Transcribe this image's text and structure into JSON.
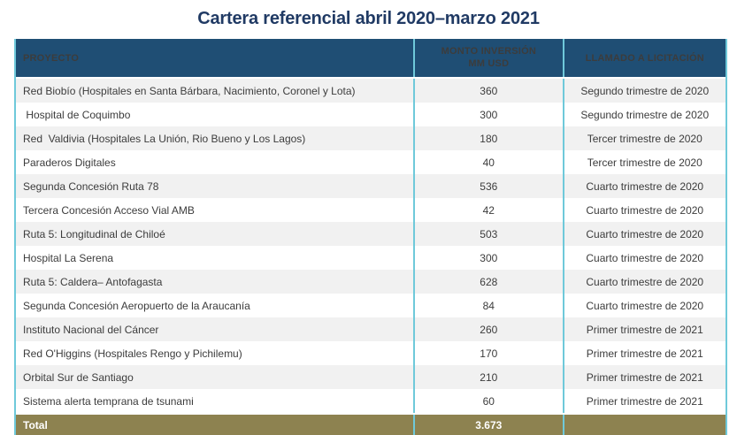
{
  "title": "Cartera referencial abril 2020–marzo 2021",
  "table": {
    "header": {
      "proyecto": "PROYECTO",
      "monto_line1": "MONTO INVERSIÓN",
      "monto_line2": "MM USD",
      "llamado": "LLAMADO A LICITACIÓN"
    },
    "rows": [
      {
        "proyecto": "Red Biobío (Hospitales en Santa Bárbara, Nacimiento, Coronel y Lota)",
        "monto": "360",
        "llamado": "Segundo trimestre de 2020"
      },
      {
        "proyecto": " Hospital de Coquimbo",
        "monto": "300",
        "llamado": "Segundo trimestre de 2020"
      },
      {
        "proyecto": "Red  Valdivia (Hospitales La Unión, Rio Bueno y Los Lagos)",
        "monto": "180",
        "llamado": "Tercer trimestre de 2020"
      },
      {
        "proyecto": "Paraderos Digitales",
        "monto": "40",
        "llamado": "Tercer trimestre de 2020"
      },
      {
        "proyecto": "Segunda Concesión Ruta 78",
        "monto": "536",
        "llamado": "Cuarto trimestre de 2020"
      },
      {
        "proyecto": "Tercera Concesión Acceso Vial AMB",
        "monto": "42",
        "llamado": "Cuarto trimestre de 2020"
      },
      {
        "proyecto": "Ruta 5: Longitudinal de Chiloé",
        "monto": "503",
        "llamado": "Cuarto trimestre de 2020"
      },
      {
        "proyecto": "Hospital La Serena",
        "monto": "300",
        "llamado": "Cuarto trimestre de 2020"
      },
      {
        "proyecto": "Ruta 5: Caldera– Antofagasta",
        "monto": "628",
        "llamado": "Cuarto trimestre de 2020"
      },
      {
        "proyecto": "Segunda Concesión Aeropuerto de la Araucanía",
        "monto": "84",
        "llamado": "Cuarto trimestre de 2020"
      },
      {
        "proyecto": "Instituto Nacional del Cáncer",
        "monto": "260",
        "llamado": "Primer trimestre de 2021"
      },
      {
        "proyecto": "Red O'Higgins (Hospitales Rengo y Pichilemu)",
        "monto": "170",
        "llamado": "Primer trimestre de 2021"
      },
      {
        "proyecto": "Orbital Sur de Santiago",
        "monto": "210",
        "llamado": "Primer trimestre de 2021"
      },
      {
        "proyecto": "Sistema alerta temprana de tsunami",
        "monto": "60",
        "llamado": "Primer trimestre de 2021"
      }
    ],
    "total": {
      "label": "Total",
      "monto": "3.673",
      "llamado": ""
    }
  },
  "colors": {
    "header_navy": "#1F4E74",
    "title_navy": "#203A64",
    "cyan_border": "#6FC9DA",
    "total_olive": "#8D8250",
    "zebra_gray": "#F1F1F1",
    "body_text": "#3C3C3C"
  }
}
